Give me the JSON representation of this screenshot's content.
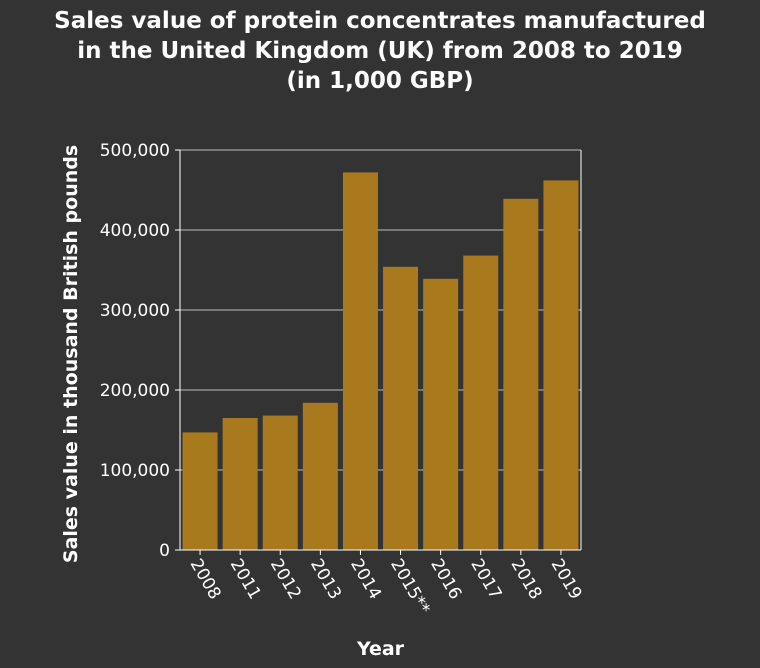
{
  "chart_data": {
    "type": "bar",
    "title_lines": [
      "Sales value of protein concentrates manufactured",
      "in the United Kingdom (UK) from 2008 to 2019",
      "(in 1,000 GBP)"
    ],
    "xlabel": "Year",
    "ylabel": "Sales value in thousand British pounds",
    "categories": [
      "2008",
      "2011",
      "2012",
      "2013",
      "2014",
      "2015**",
      "2016",
      "2017",
      "2018",
      "2019"
    ],
    "values": [
      147000,
      165000,
      168000,
      184000,
      472000,
      354000,
      339000,
      368000,
      439000,
      462000
    ],
    "ylim": [
      0,
      500000
    ],
    "yticks": [
      0,
      100000,
      200000,
      300000,
      400000,
      500000
    ],
    "ytick_labels": [
      "0",
      "100,000",
      "200,000",
      "300,000",
      "400,000",
      "500,000"
    ],
    "bar_color": "#a87a1d",
    "grid": true,
    "legend": "none"
  }
}
